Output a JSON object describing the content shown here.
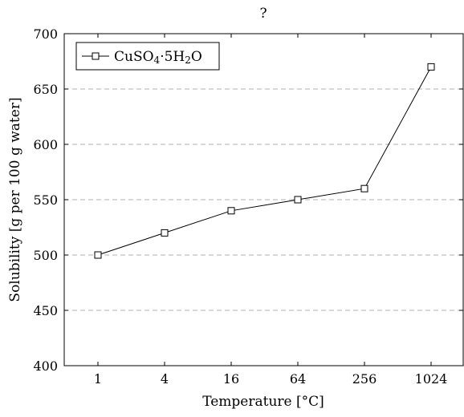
{
  "chart_data": {
    "type": "line",
    "title": "?",
    "xlabel": "Temperature [°C]",
    "ylabel": "Solubility [g per 100 g water]",
    "x_scale": "log2",
    "x": [
      1,
      4,
      16,
      64,
      256,
      1024
    ],
    "x_tick_labels": [
      "1",
      "4",
      "16",
      "64",
      "256",
      "1024"
    ],
    "ylim": [
      400,
      700
    ],
    "y_ticks": [
      400,
      450,
      500,
      550,
      600,
      650,
      700
    ],
    "grid": "horizontal-dashed",
    "legend_position": "top-left",
    "series": [
      {
        "name": "CuSO4·5H2O",
        "values": [
          500,
          520,
          540,
          550,
          560,
          670
        ],
        "marker": "square",
        "color": "#000000"
      }
    ]
  }
}
